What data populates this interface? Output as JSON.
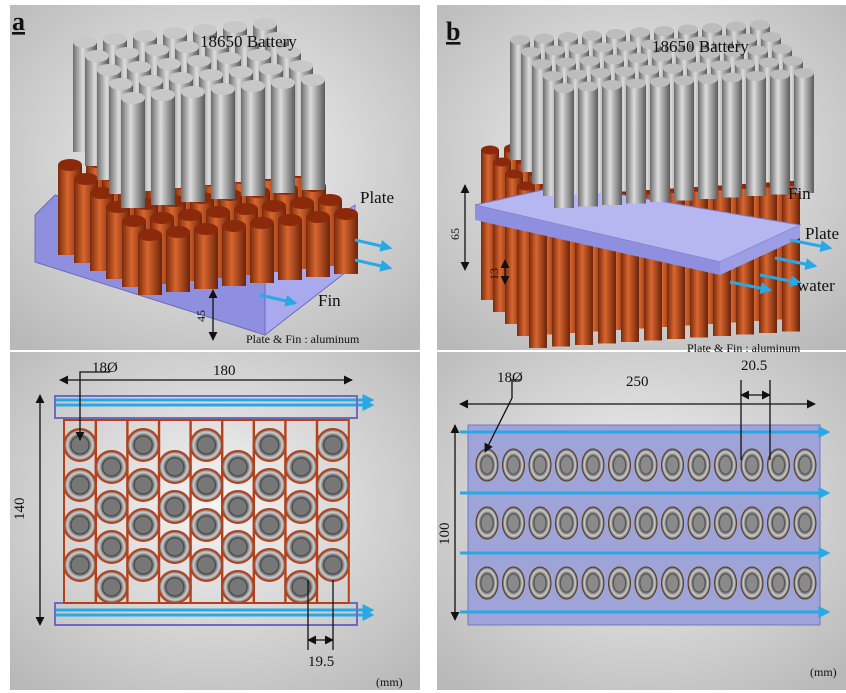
{
  "panel_a": {
    "label": "a",
    "battery": "18650 Battery",
    "plate": "Plate",
    "fin": "Fin",
    "height": "45",
    "material": "Plate & Fin : aluminum",
    "diameter": "18Ø",
    "width": "180",
    "length": "140",
    "pitch": "19.5",
    "unit": "(mm)"
  },
  "panel_b": {
    "label": "b",
    "battery": "18650 Battery",
    "fin": "Fin",
    "plate": "Plate",
    "water": "water",
    "fin_height": "65",
    "plate_height": "13",
    "material": "Plate & Fin : aluminum",
    "diameter": "18Ø",
    "width": "250",
    "pitch": "20.5",
    "length": "100",
    "unit": "(mm)"
  }
}
